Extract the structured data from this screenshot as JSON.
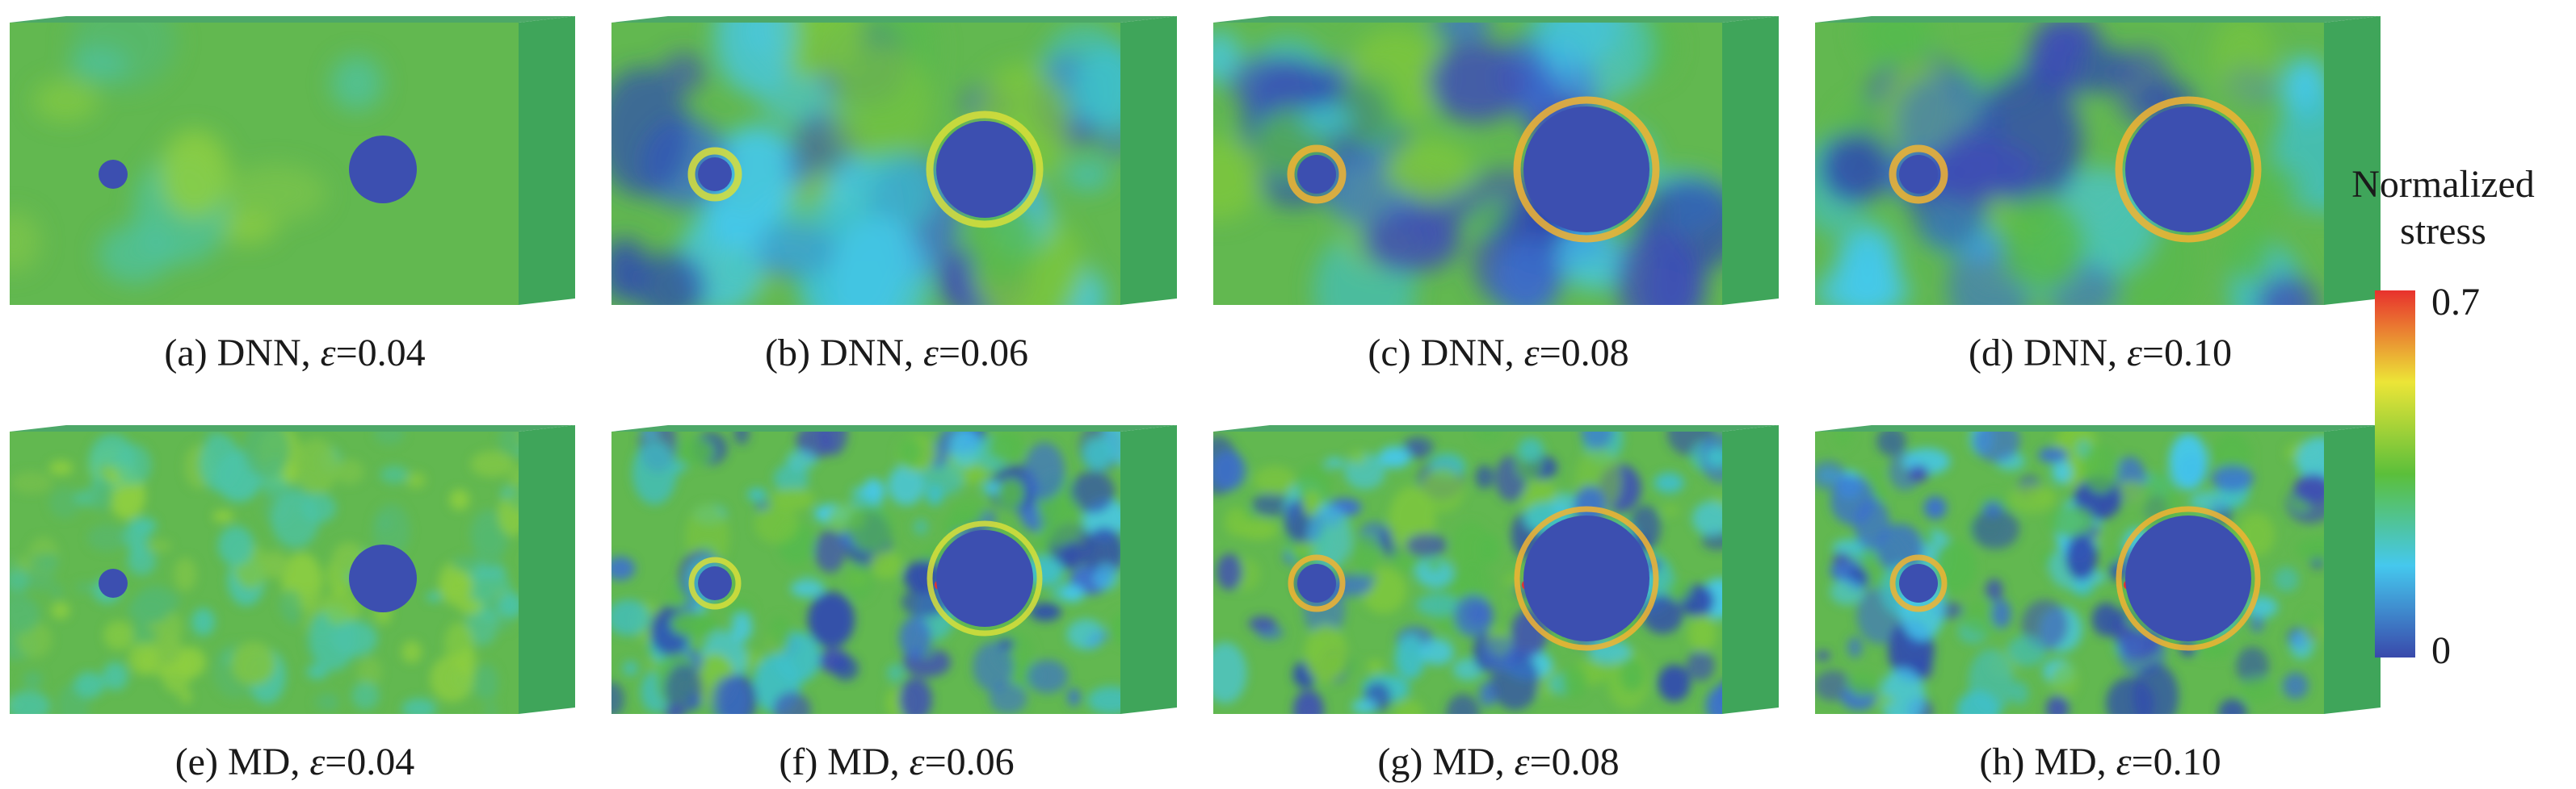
{
  "panels": [
    {
      "tag": "(a)",
      "method": "DNN",
      "eps_symbol": "ε",
      "eps_value": "=0.04",
      "field_variant": "smooth-low"
    },
    {
      "tag": "(b)",
      "method": "DNN",
      "eps_symbol": "ε",
      "eps_value": "=0.06",
      "field_variant": "smooth-mid"
    },
    {
      "tag": "(c)",
      "method": "DNN",
      "eps_symbol": "ε",
      "eps_value": "=0.08",
      "field_variant": "smooth-high"
    },
    {
      "tag": "(d)",
      "method": "DNN",
      "eps_symbol": "ε",
      "eps_value": "=0.10",
      "field_variant": "smooth-high"
    },
    {
      "tag": "(e)",
      "method": "MD",
      "eps_symbol": "ε",
      "eps_value": "=0.04",
      "field_variant": "noisy-low"
    },
    {
      "tag": "(f)",
      "method": "MD",
      "eps_symbol": "ε",
      "eps_value": "=0.06",
      "field_variant": "noisy-mid"
    },
    {
      "tag": "(g)",
      "method": "MD",
      "eps_symbol": "ε",
      "eps_value": "=0.08",
      "field_variant": "noisy-high"
    },
    {
      "tag": "(h)",
      "method": "MD",
      "eps_symbol": "ε",
      "eps_value": "=0.10",
      "field_variant": "noisy-high"
    }
  ],
  "legend": {
    "title_line1": "Normalized",
    "title_line2": "stress",
    "max_label": "0.7",
    "min_label": "0",
    "colors": [
      "#3949ab",
      "#45c8ee",
      "#5bbf3a",
      "#ece537",
      "#e8312d"
    ]
  },
  "pore_color": "#3c4fb0",
  "base_field_color": "#62b850"
}
